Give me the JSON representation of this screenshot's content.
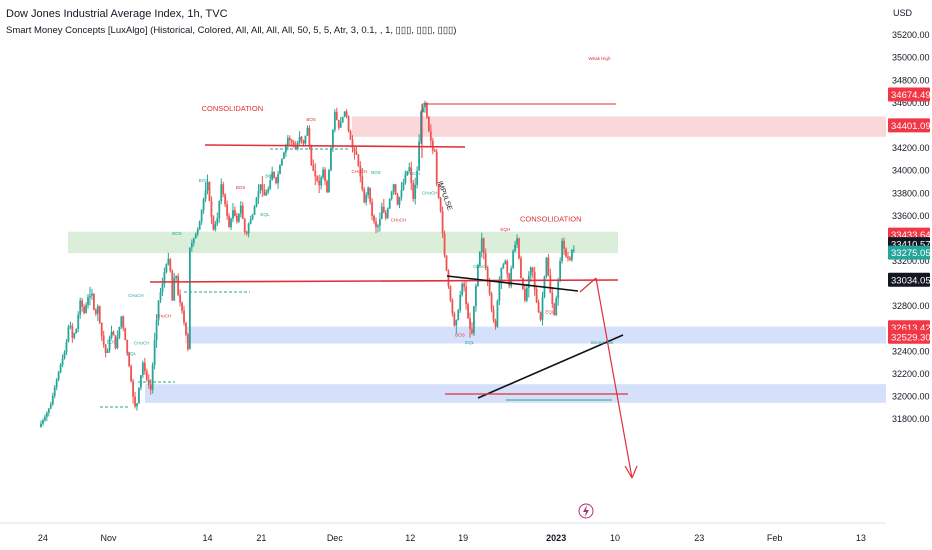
{
  "header": {
    "title": "Dow Jones Industrial Average Index, 1h, TVC",
    "indicator": "Smart Money Concepts [LuxAlgo] (Historical, Colored, All, All, All, All, 50, 5, 5, Atr, 3, 0.1, , 1, ▯▯▯, ▯▯▯, ▯▯▯)"
  },
  "colors": {
    "up": "#26a69a",
    "down": "#ef5350",
    "drawing": "#e0303a",
    "supply_zone": "#f8c9cb",
    "demand_zone": "#cfe8cc",
    "blue_zone": "#c7d6fa",
    "text_axis": "#131722"
  },
  "chart_data": {
    "type": "candlestick",
    "y_axis": {
      "unit": "USD",
      "ylim": [
        31700,
        35400
      ],
      "ticks": [
        31800,
        32000,
        32200,
        32400,
        32600,
        32800,
        33000,
        33200,
        33400,
        33600,
        33800,
        34000,
        34200,
        34400,
        34600,
        34800,
        35000,
        35200
      ],
      "tick_labels": [
        "31800.00",
        "32000.00",
        "32200.00",
        "32400.00",
        "32600.00",
        "32800.00",
        "33000.00",
        "33200.00",
        "33400.00",
        "33600.00",
        "33800.00",
        "34000.00",
        "34200.00",
        "34400.00",
        "34600.00",
        "34800.00",
        "35000.00",
        "35200.00"
      ]
    },
    "x_axis": {
      "ticks": [
        {
          "label": "24",
          "t": 3
        },
        {
          "label": "Nov",
          "t": 70
        },
        {
          "label": "14",
          "t": 171
        },
        {
          "label": "21",
          "t": 226
        },
        {
          "label": "Dec",
          "t": 301
        },
        {
          "label": "12",
          "t": 378
        },
        {
          "label": "19",
          "t": 432
        },
        {
          "label": "2023",
          "t": 527
        },
        {
          "label": "10",
          "t": 587
        },
        {
          "label": "23",
          "t": 673
        },
        {
          "label": "Feb",
          "t": 750
        },
        {
          "label": "13",
          "t": 838
        }
      ]
    },
    "price_path": [
      [
        0,
        31730
      ],
      [
        6,
        31820
      ],
      [
        12,
        31930
      ],
      [
        17,
        32120
      ],
      [
        22,
        32280
      ],
      [
        27,
        32420
      ],
      [
        31,
        32680
      ],
      [
        34,
        32520
      ],
      [
        38,
        32600
      ],
      [
        42,
        32850
      ],
      [
        46,
        32740
      ],
      [
        50,
        32880
      ],
      [
        54,
        32910
      ],
      [
        57,
        32700
      ],
      [
        60,
        32800
      ],
      [
        63,
        32580
      ],
      [
        66,
        32460
      ],
      [
        69,
        32350
      ],
      [
        72,
        32520
      ],
      [
        75,
        32600
      ],
      [
        78,
        32430
      ],
      [
        81,
        32570
      ],
      [
        84,
        32710
      ],
      [
        88,
        32500
      ],
      [
        92,
        32270
      ],
      [
        96,
        32000
      ],
      [
        99,
        31870
      ],
      [
        102,
        32080
      ],
      [
        106,
        32300
      ],
      [
        110,
        32150
      ],
      [
        114,
        32060
      ],
      [
        118,
        32500
      ],
      [
        122,
        32850
      ],
      [
        126,
        33000
      ],
      [
        129,
        33150
      ],
      [
        133,
        33240
      ],
      [
        136,
        32850
      ],
      [
        139,
        33150
      ],
      [
        142,
        32900
      ],
      [
        146,
        32760
      ],
      [
        150,
        32550
      ],
      [
        152,
        32420
      ],
      [
        153,
        33300
      ],
      [
        158,
        33400
      ],
      [
        163,
        33500
      ],
      [
        168,
        33750
      ],
      [
        172,
        33900
      ],
      [
        175,
        33650
      ],
      [
        178,
        33480
      ],
      [
        182,
        33580
      ],
      [
        186,
        33880
      ],
      [
        190,
        33700
      ],
      [
        194,
        33500
      ],
      [
        198,
        33650
      ],
      [
        202,
        33550
      ],
      [
        206,
        33690
      ],
      [
        211,
        33400
      ],
      [
        214,
        33530
      ],
      [
        218,
        33610
      ],
      [
        222,
        33760
      ],
      [
        226,
        33880
      ],
      [
        230,
        33780
      ],
      [
        234,
        33840
      ],
      [
        238,
        33990
      ],
      [
        242,
        33890
      ],
      [
        246,
        34050
      ],
      [
        250,
        34160
      ],
      [
        254,
        34290
      ],
      [
        258,
        34250
      ],
      [
        262,
        34190
      ],
      [
        266,
        34300
      ],
      [
        270,
        34240
      ],
      [
        274,
        34380
      ],
      [
        278,
        34050
      ],
      [
        282,
        33950
      ],
      [
        286,
        33870
      ],
      [
        290,
        34010
      ],
      [
        294,
        33810
      ],
      [
        298,
        34200
      ],
      [
        302,
        34520
      ],
      [
        306,
        34380
      ],
      [
        309,
        34450
      ],
      [
        313,
        34550
      ],
      [
        316,
        34350
      ],
      [
        320,
        34200
      ],
      [
        324,
        34140
      ],
      [
        328,
        33950
      ],
      [
        332,
        33720
      ],
      [
        336,
        33850
      ],
      [
        340,
        33600
      ],
      [
        344,
        33500
      ],
      [
        347,
        33520
      ],
      [
        350,
        33680
      ],
      [
        354,
        33580
      ],
      [
        358,
        33750
      ],
      [
        362,
        33880
      ],
      [
        366,
        33700
      ],
      [
        370,
        33830
      ],
      [
        374,
        33960
      ],
      [
        378,
        34030
      ],
      [
        382,
        33750
      ],
      [
        386,
        34000
      ],
      [
        390,
        34520
      ],
      [
        394,
        34600
      ],
      [
        398,
        34350
      ],
      [
        402,
        34180
      ],
      [
        404,
        34170
      ],
      [
        406,
        33880
      ],
      [
        410,
        33640
      ],
      [
        414,
        33250
      ],
      [
        418,
        32980
      ],
      [
        421,
        32790
      ],
      [
        424,
        32630
      ],
      [
        427,
        32700
      ],
      [
        430,
        32900
      ],
      [
        433,
        33050
      ],
      [
        437,
        32740
      ],
      [
        440,
        32600
      ],
      [
        442,
        32560
      ],
      [
        444,
        32800
      ],
      [
        448,
        33160
      ],
      [
        452,
        33400
      ],
      [
        456,
        33140
      ],
      [
        460,
        32910
      ],
      [
        463,
        32700
      ],
      [
        466,
        32620
      ],
      [
        469,
        32960
      ],
      [
        472,
        33140
      ],
      [
        476,
        33200
      ],
      [
        480,
        32980
      ],
      [
        484,
        33290
      ],
      [
        488,
        33400
      ],
      [
        492,
        33050
      ],
      [
        496,
        32850
      ],
      [
        500,
        33070
      ],
      [
        503,
        33180
      ],
      [
        506,
        32950
      ],
      [
        509,
        32780
      ],
      [
        512,
        32680
      ],
      [
        515,
        32980
      ],
      [
        518,
        33230
      ],
      [
        522,
        32920
      ],
      [
        526,
        32720
      ],
      [
        530,
        33020
      ],
      [
        534,
        33380
      ],
      [
        538,
        33240
      ],
      [
        542,
        33210
      ],
      [
        544,
        33300
      ]
    ],
    "zones": [
      {
        "name": "Supply zone",
        "top": 34480,
        "bottom": 34300
      },
      {
        "name": "Demand zone",
        "top": 33460,
        "bottom": 33270
      },
      {
        "name": "Demand zone 2",
        "top": 32620,
        "bottom": 32470
      },
      {
        "name": "Target zone",
        "top": 32110,
        "bottom": 31945
      }
    ],
    "annotations": [
      {
        "text": "CONSOLIDATION",
        "t": 165,
        "price": 34530
      },
      {
        "text": "CONSOLIDATION",
        "t": 490,
        "price": 33550
      },
      {
        "text": "IMPULSE",
        "t": 406,
        "price": 33900
      },
      {
        "text": "Weak High",
        "t": 560,
        "price": 34980
      },
      {
        "text": "EQH",
        "t": 470,
        "price": 33465
      },
      {
        "text": "EQL",
        "t": 516,
        "price": 32735
      },
      {
        "text": "EQL",
        "t": 434,
        "price": 32465
      },
      {
        "text": "Strong Low",
        "t": 562,
        "price": 32465
      },
      {
        "text": "BOS",
        "t": 272,
        "price": 34440
      },
      {
        "text": "BOS",
        "t": 162,
        "price": 33900
      },
      {
        "text": "BOS",
        "t": 230,
        "price": 33940
      },
      {
        "text": "BOS",
        "t": 200,
        "price": 33840
      },
      {
        "text": "BOS",
        "t": 68,
        "price": 32470
      },
      {
        "text": "BOS",
        "t": 135,
        "price": 33430
      },
      {
        "text": "BOS",
        "t": 424,
        "price": 32530
      },
      {
        "text": "BOS",
        "t": 338,
        "price": 33970
      },
      {
        "text": "CHoCH",
        "t": 90,
        "price": 32880
      },
      {
        "text": "CHoCH",
        "t": 118,
        "price": 32700
      },
      {
        "text": "CHoCH",
        "t": 96,
        "price": 32460
      },
      {
        "text": "CHoCH",
        "t": 372,
        "price": 33960
      },
      {
        "text": "CHoCH",
        "t": 318,
        "price": 33980
      },
      {
        "text": "CHoCH",
        "t": 390,
        "price": 33790
      },
      {
        "text": "CHoCH",
        "t": 442,
        "price": 33140
      },
      {
        "text": "CHoCH",
        "t": 358,
        "price": 33550
      },
      {
        "text": "EQL",
        "t": 89,
        "price": 32370
      },
      {
        "text": "EQL",
        "t": 225,
        "price": 33600
      }
    ],
    "price_labels": [
      {
        "value": "34674.49",
        "price": 34674.49,
        "color": "#f23645"
      },
      {
        "value": "34401.09",
        "price": 34401.09,
        "color": "#f23645"
      },
      {
        "value": "33433.64",
        "price": 33433.64,
        "color": "#f23645"
      },
      {
        "value": "33410.57",
        "price": 33350,
        "color": "#131722"
      },
      {
        "value": "33275.05",
        "price": 33275.05,
        "color": "#26a69a"
      },
      {
        "value": "33034.05",
        "price": 33034.05,
        "color": "#131722"
      },
      {
        "value": "32613.42",
        "price": 32613.42,
        "color": "#f23645"
      },
      {
        "value": "32529.30",
        "price": 32529.3,
        "color": "#f23645"
      }
    ]
  }
}
